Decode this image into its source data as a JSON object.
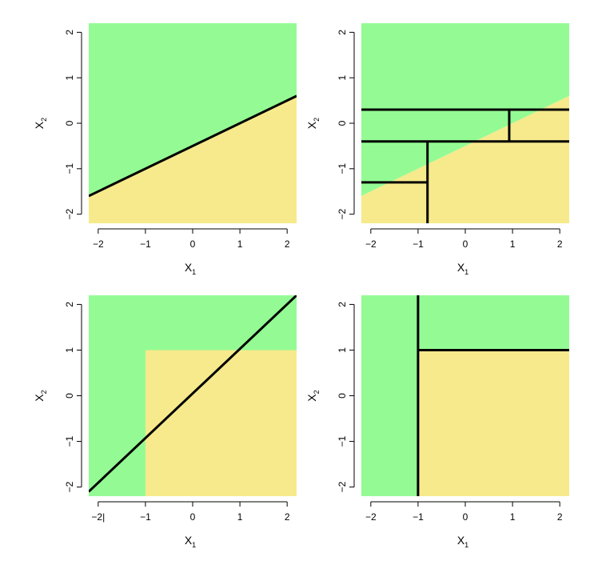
{
  "colors": {
    "green": "#94fb94",
    "yellow": "#f6ea8c",
    "line": "#000000"
  },
  "chart_data": [
    {
      "type": "classification-regions",
      "panel": "top-left",
      "title": "",
      "xlabel": {
        "main": "X",
        "sub": "1"
      },
      "ylabel": {
        "main": "X",
        "sub": "2"
      },
      "xlim": [
        -2.2,
        2.2
      ],
      "ylim": [
        -2.2,
        2.2
      ],
      "xticks": [
        -2,
        -1,
        0,
        1,
        2
      ],
      "yticks": [
        -2,
        -1,
        0,
        1,
        2
      ],
      "xtick_labels": [
        "−2",
        "−1",
        "0",
        "1",
        "2"
      ],
      "ytick_labels": [
        "−2",
        "−1",
        "0",
        "1",
        "2"
      ],
      "regions": [
        {
          "class": "green",
          "polygon": [
            [
              -2.2,
              -1.6
            ],
            [
              2.2,
              0.6
            ],
            [
              2.2,
              2.2
            ],
            [
              -2.2,
              2.2
            ]
          ]
        },
        {
          "class": "yellow",
          "polygon": [
            [
              -2.2,
              -2.2
            ],
            [
              2.2,
              -2.2
            ],
            [
              2.2,
              0.6
            ],
            [
              -2.2,
              -1.6
            ]
          ]
        }
      ],
      "boundary_lines": [
        {
          "x1": -2.2,
          "y1": -1.6,
          "x2": 2.2,
          "y2": 0.6
        }
      ]
    },
    {
      "type": "classification-regions",
      "panel": "top-right",
      "title": "",
      "xlabel": {
        "main": "X",
        "sub": "1"
      },
      "ylabel": {
        "main": "X",
        "sub": "2"
      },
      "xlim": [
        -2.2,
        2.2
      ],
      "ylim": [
        -2.2,
        2.2
      ],
      "xticks": [
        -2,
        -1,
        0,
        1,
        2
      ],
      "yticks": [
        -2,
        -1,
        0,
        1,
        2
      ],
      "xtick_labels": [
        "−2",
        "−1",
        "0",
        "1",
        "2"
      ],
      "ytick_labels": [
        "−2",
        "−1",
        "0",
        "1",
        "2"
      ],
      "regions": [
        {
          "class": "green",
          "polygon": [
            [
              -2.2,
              -1.6
            ],
            [
              2.2,
              0.6
            ],
            [
              2.2,
              2.2
            ],
            [
              -2.2,
              2.2
            ]
          ]
        },
        {
          "class": "yellow",
          "polygon": [
            [
              -2.2,
              -2.2
            ],
            [
              2.2,
              -2.2
            ],
            [
              2.2,
              0.6
            ],
            [
              -2.2,
              -1.6
            ]
          ]
        }
      ],
      "boundary_lines": [
        {
          "x1": -2.2,
          "y1": 0.3,
          "x2": 2.2,
          "y2": 0.3
        },
        {
          "x1": -2.2,
          "y1": -0.4,
          "x2": 2.2,
          "y2": -0.4
        },
        {
          "x1": 0.93,
          "y1": -0.4,
          "x2": 0.93,
          "y2": 0.3
        },
        {
          "x1": -0.8,
          "y1": -2.2,
          "x2": -0.8,
          "y2": -0.4
        },
        {
          "x1": -2.2,
          "y1": -1.3,
          "x2": -0.8,
          "y2": -1.3
        }
      ]
    },
    {
      "type": "classification-regions",
      "panel": "bottom-left",
      "title": "",
      "xlabel": {
        "main": "X",
        "sub": "1"
      },
      "ylabel": {
        "main": "X",
        "sub": "2"
      },
      "xlim": [
        -2.2,
        2.2
      ],
      "ylim": [
        -2.2,
        2.2
      ],
      "xticks": [
        -2,
        -1,
        0,
        1,
        2
      ],
      "yticks": [
        -2,
        -1,
        0,
        1,
        2
      ],
      "xtick_labels": [
        "−2|",
        "−1",
        "0",
        "1",
        "2"
      ],
      "ytick_labels": [
        "−2",
        "−1",
        "0",
        "1",
        "2"
      ],
      "regions": [
        {
          "class": "green",
          "polygon": [
            [
              -2.2,
              -2.2
            ],
            [
              2.2,
              -2.2
            ],
            [
              2.2,
              2.2
            ],
            [
              -2.2,
              2.2
            ]
          ]
        },
        {
          "class": "yellow",
          "polygon": [
            [
              -1.0,
              -2.2
            ],
            [
              2.2,
              -2.2
            ],
            [
              2.2,
              1.0
            ],
            [
              -1.0,
              1.0
            ]
          ]
        }
      ],
      "boundary_lines": [
        {
          "x1": -2.2,
          "y1": -2.1,
          "x2": 2.2,
          "y2": 2.2
        }
      ]
    },
    {
      "type": "classification-regions",
      "panel": "bottom-right",
      "title": "",
      "xlabel": {
        "main": "X",
        "sub": "1"
      },
      "ylabel": {
        "main": "X",
        "sub": "2"
      },
      "xlim": [
        -2.2,
        2.2
      ],
      "ylim": [
        -2.2,
        2.2
      ],
      "xticks": [
        -2,
        -1,
        0,
        1,
        2
      ],
      "yticks": [
        -2,
        -1,
        0,
        1,
        2
      ],
      "xtick_labels": [
        "−2",
        "−1",
        "0",
        "1",
        "2"
      ],
      "ytick_labels": [
        "−2",
        "−1",
        "0",
        "1",
        "2"
      ],
      "regions": [
        {
          "class": "green",
          "polygon": [
            [
              -2.2,
              -2.2
            ],
            [
              2.2,
              -2.2
            ],
            [
              2.2,
              2.2
            ],
            [
              -2.2,
              2.2
            ]
          ]
        },
        {
          "class": "yellow",
          "polygon": [
            [
              -1.0,
              -2.2
            ],
            [
              2.2,
              -2.2
            ],
            [
              2.2,
              1.0
            ],
            [
              -1.0,
              1.0
            ]
          ]
        }
      ],
      "boundary_lines": [
        {
          "x1": -1.0,
          "y1": -2.2,
          "x2": -1.0,
          "y2": 2.2
        },
        {
          "x1": -1.0,
          "y1": 1.0,
          "x2": 2.2,
          "y2": 1.0
        }
      ]
    }
  ]
}
